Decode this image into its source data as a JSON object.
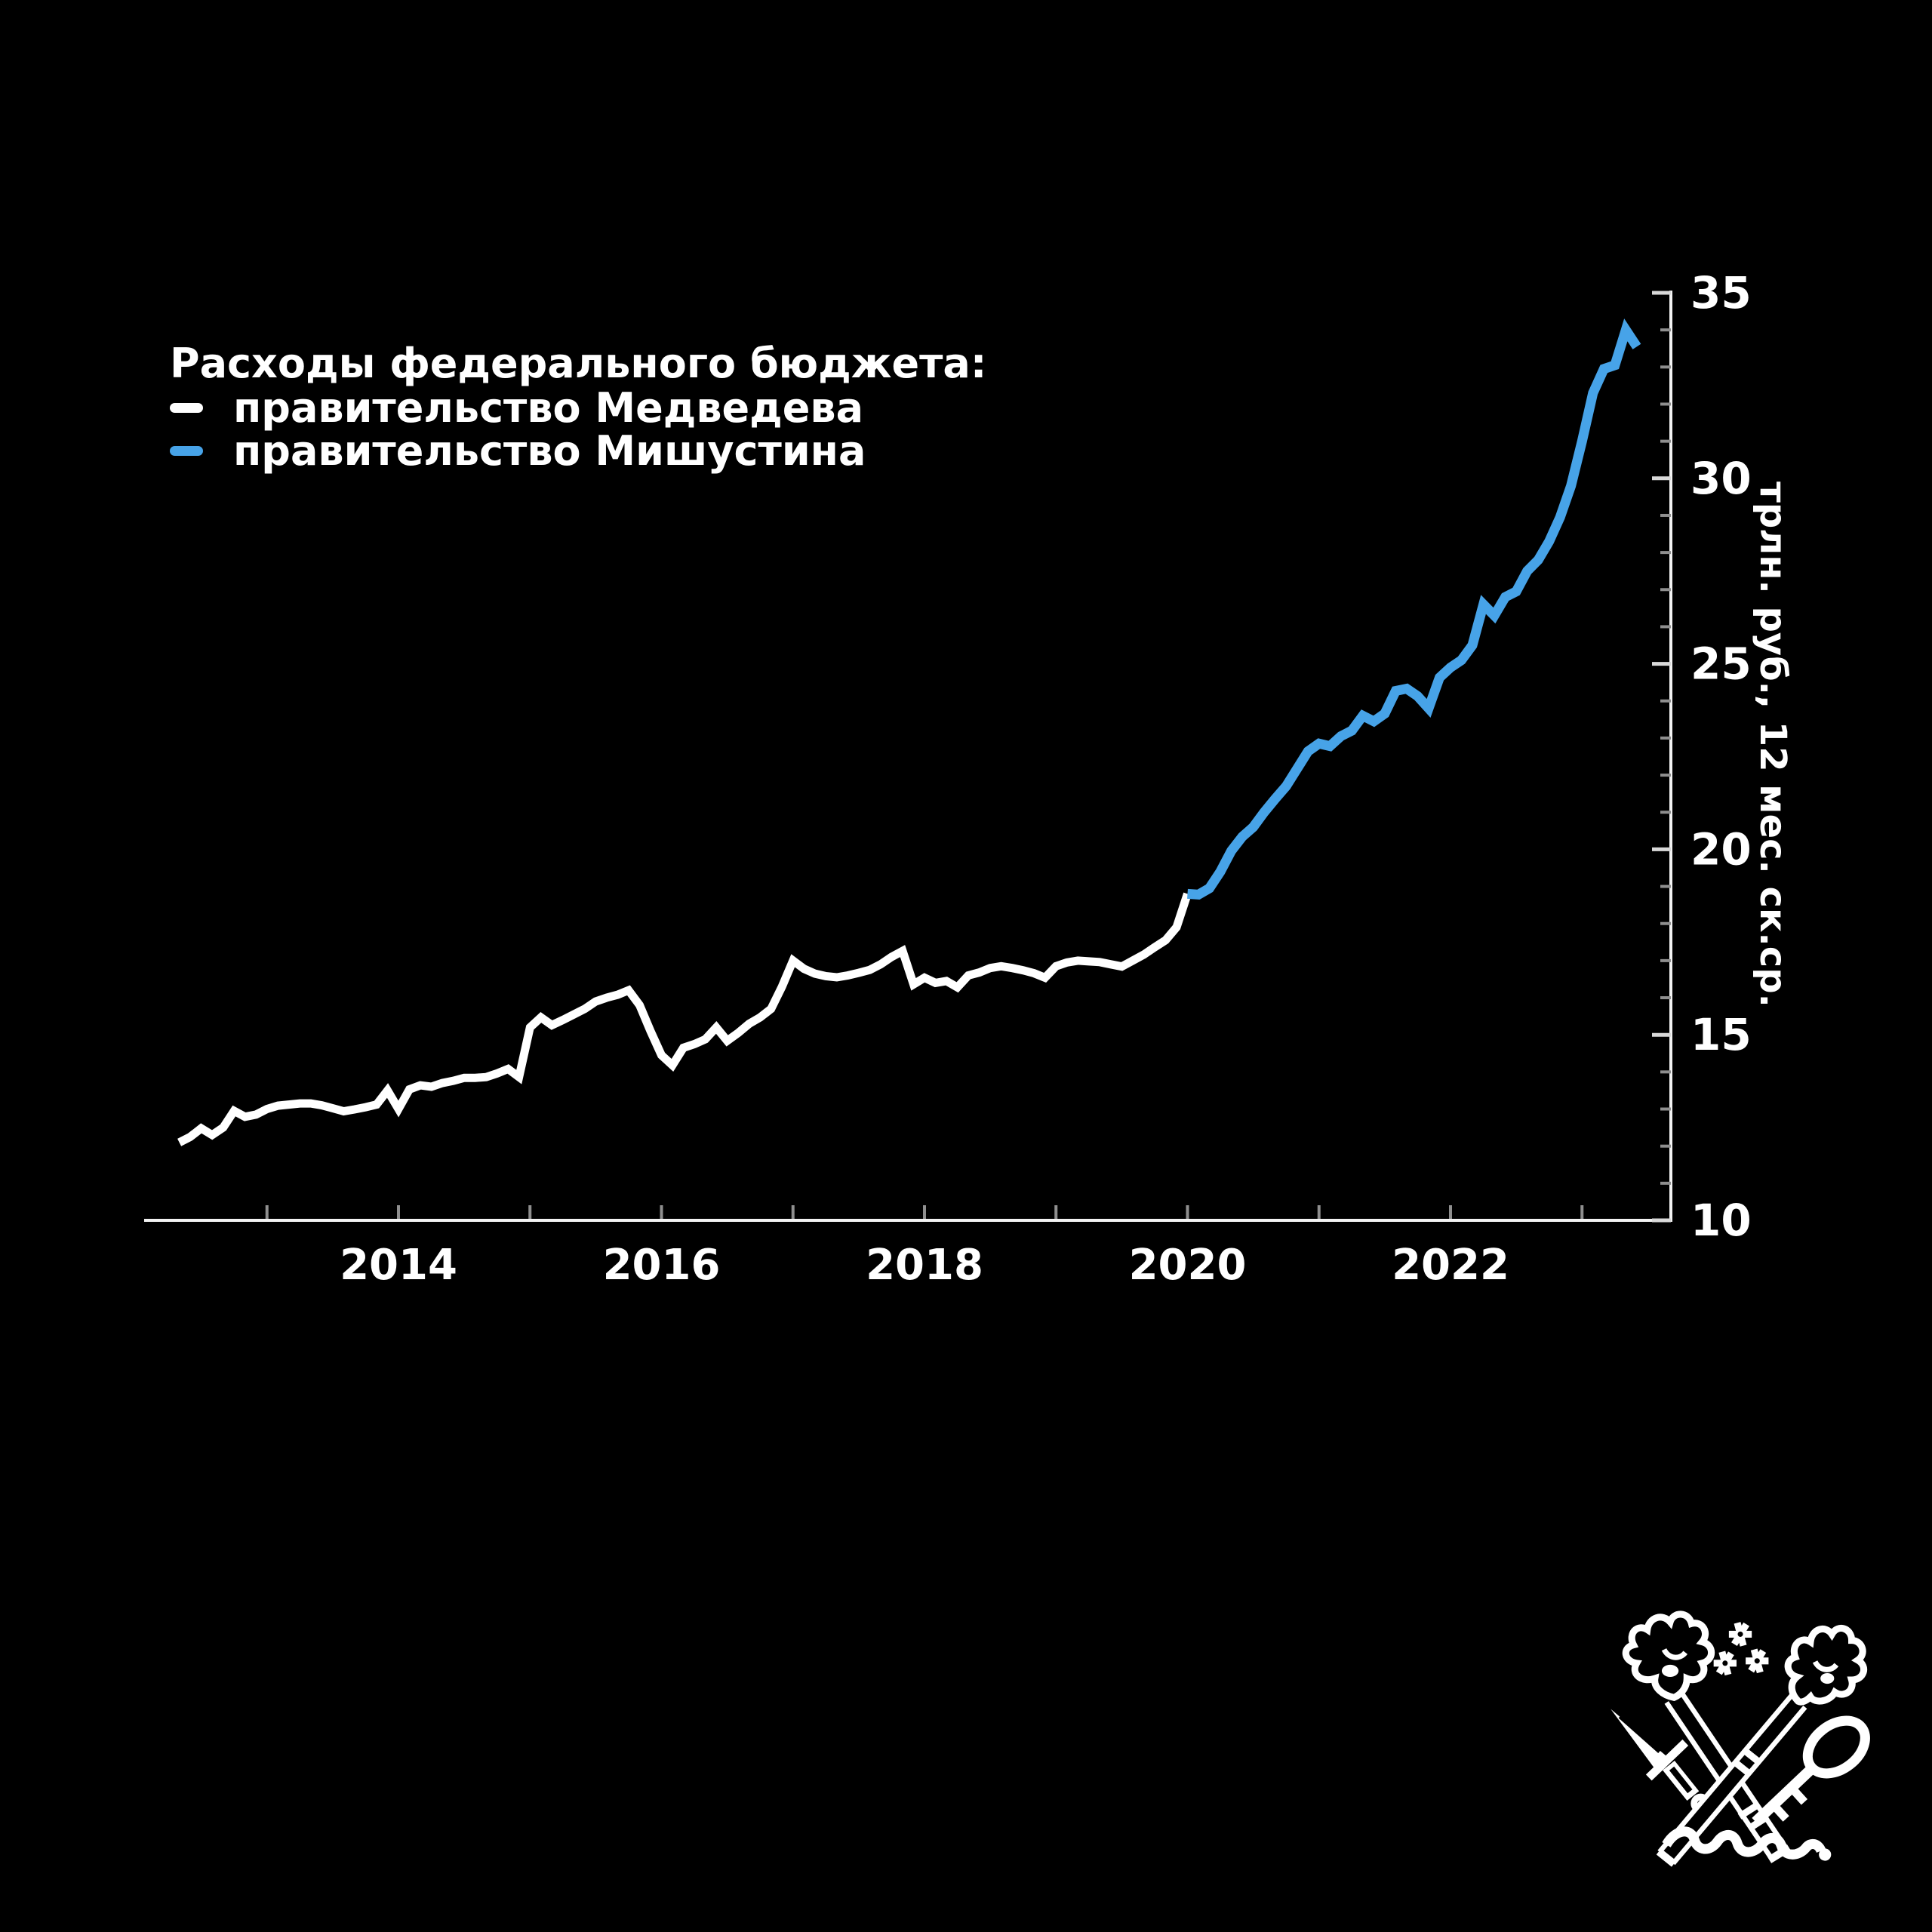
{
  "header": {
    "title": "Расходы федерального бюджета:",
    "legend": [
      {
        "label": "правительство Медведева",
        "color": "#ffffff"
      },
      {
        "label": "правительство Мишустина",
        "color": "#47a3e8"
      }
    ]
  },
  "chart_data": {
    "type": "line",
    "title": "Расходы федерального бюджета:",
    "ylabel": "трлн. руб., 12 мес. ск.ср.",
    "xlabel": "",
    "ylim": [
      10,
      35
    ],
    "y_major_ticks": [
      10,
      15,
      20,
      25,
      30,
      35
    ],
    "y_minor_step": 1,
    "x_tick_years": [
      2013,
      2014,
      2015,
      2016,
      2017,
      2018,
      2019,
      2020,
      2021,
      2022,
      2023
    ],
    "x_label_years": [
      2014,
      2016,
      2018,
      2020,
      2022
    ],
    "x_unit": "month",
    "x_start": "2012-05",
    "x_end": "2023-06",
    "grid": "off",
    "legend_position": "top-left",
    "series": [
      {
        "name": "правительство Медведева",
        "color": "#ffffff",
        "start": "2012-05",
        "values": [
          12.1,
          12.25,
          12.48,
          12.3,
          12.5,
          12.95,
          12.79,
          12.85,
          13.0,
          13.09,
          13.12,
          13.15,
          13.15,
          13.1,
          13.02,
          12.94,
          12.99,
          13.05,
          13.12,
          13.5,
          13.0,
          13.53,
          13.64,
          13.6,
          13.7,
          13.76,
          13.84,
          13.84,
          13.86,
          13.96,
          14.08,
          13.86,
          15.2,
          15.47,
          15.26,
          15.4,
          15.55,
          15.7,
          15.9,
          16.0,
          16.08,
          16.2,
          15.8,
          15.1,
          14.45,
          14.18,
          14.65,
          14.75,
          14.88,
          15.2,
          14.84,
          15.05,
          15.3,
          15.47,
          15.7,
          16.3,
          17.0,
          16.78,
          16.65,
          16.58,
          16.55,
          16.6,
          16.67,
          16.75,
          16.9,
          17.1,
          17.26,
          16.36,
          16.54,
          16.4,
          16.45,
          16.28,
          16.6,
          16.68,
          16.8,
          16.85,
          16.8,
          16.74,
          16.66,
          16.54,
          16.85,
          16.95,
          17.0,
          16.98,
          16.96,
          16.9,
          16.84,
          17.0,
          17.16,
          17.36,
          17.55,
          17.9,
          18.8
        ]
      },
      {
        "name": "правительство Мишустина",
        "color": "#47a3e8",
        "start": "2020-01",
        "values": [
          18.8,
          18.78,
          18.95,
          19.4,
          19.96,
          20.34,
          20.6,
          21.0,
          21.36,
          21.7,
          22.17,
          22.64,
          22.85,
          22.78,
          23.05,
          23.2,
          23.6,
          23.45,
          23.66,
          24.27,
          24.33,
          24.13,
          23.8,
          24.63,
          24.9,
          25.1,
          25.5,
          26.6,
          26.3,
          26.8,
          26.95,
          27.5,
          27.8,
          28.3,
          28.95,
          29.8,
          31.0,
          32.3,
          32.95,
          33.05,
          34.0,
          33.55
        ]
      }
    ]
  },
  "logo": {
    "name": "crossed-flaming-torches-with-dagger-and-key-emblem",
    "color": "#ffffff"
  }
}
